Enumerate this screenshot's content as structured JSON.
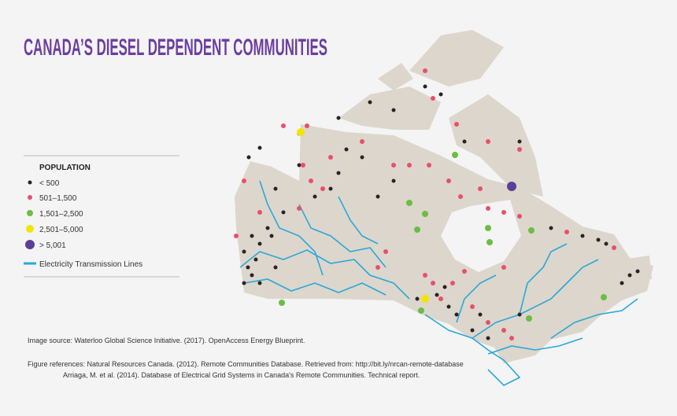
{
  "header": {
    "title": "CANADA’S DIESEL DEPENDENT COMMUNITIES"
  },
  "legend": {
    "title": "POPULATION",
    "items": [
      {
        "label": "< 500",
        "color": "#2b2226"
      },
      {
        "label": "501–1,500",
        "color": "#e8506a"
      },
      {
        "label": "1,501–2,500",
        "color": "#6cbd45"
      },
      {
        "label": "2,501–5,000",
        "color": "#f2e600"
      },
      {
        "label": "> 5,001",
        "color": "#5a3f99"
      }
    ],
    "line": {
      "label": "Electricity Transmission Lines",
      "color": "#29a9d8"
    }
  },
  "source": {
    "image": "Image source:  Waterloo Global Science Initiative. (2017). OpenAccess Energy Blueprint.",
    "references": [
      "Figure references: Natural Resources Canada. (2012). Remote Communities Database. Retrieved from: http://bit.ly/nrcan-remote-database",
      "Arriaga, M. et al. (2014). Database of Electrical Grid Systems in Canada's Remote Communities. Technical report."
    ]
  }
}
